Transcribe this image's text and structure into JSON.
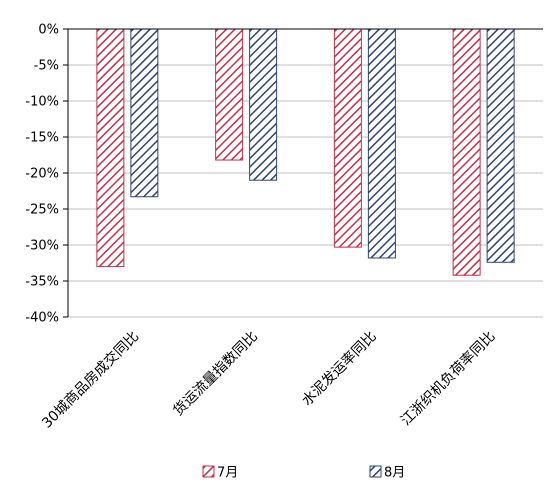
{
  "chart_data": {
    "type": "bar",
    "categories": [
      "30城商品房成交同比",
      "货运流量指数同比",
      "水泥发运率同比",
      "江浙织机负荷率同比"
    ],
    "series": [
      {
        "name": "7月",
        "values": [
          -33.0,
          -18.2,
          -30.3,
          -34.2
        ],
        "color": "#C0304A",
        "pattern": "diagonal-hatch"
      },
      {
        "name": "8月",
        "values": [
          -23.3,
          -21.0,
          -31.8,
          -32.4
        ],
        "color": "#2F4470",
        "pattern": "diagonal-hatch"
      }
    ],
    "yticks": [
      "0%",
      "-5%",
      "-10%",
      "-15%",
      "-20%",
      "-25%",
      "-30%",
      "-35%",
      "-40%"
    ],
    "ylim": [
      -40,
      0
    ],
    "title": "",
    "xlabel": "",
    "ylabel": "",
    "grid": true,
    "legend": "bottom-center"
  }
}
